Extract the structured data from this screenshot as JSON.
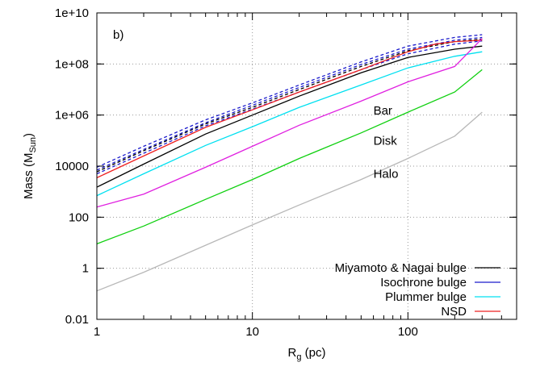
{
  "chart_data": {
    "type": "line",
    "panel_label": "b)",
    "xlabel": "R",
    "xlabel_sub": "g",
    "xlabel_unit": " (pc)",
    "ylabel": "Mass (M",
    "ylabel_sub": "Sun",
    "ylabel_end": ")",
    "xscale": "log",
    "yscale": "log",
    "xlim": [
      1,
      500
    ],
    "ylim": [
      0.01,
      10000000000
    ],
    "x_ticks": [
      1,
      10,
      100
    ],
    "x_tick_labels": [
      "1",
      "10",
      "100"
    ],
    "y_ticks": [
      0.01,
      1,
      100,
      10000,
      1000000,
      100000000,
      10000000000
    ],
    "y_tick_labels": [
      "0.01",
      "1",
      "100",
      "10000",
      "1e+06",
      "1e+08",
      "1e+10"
    ],
    "grid": true,
    "legend_position": "bottom-right",
    "legend": [
      {
        "label": "Miyamoto & Nagai bulge",
        "color": "#000000",
        "dash": "solid"
      },
      {
        "label": "Isochrone bulge",
        "color": "#1a1acc",
        "dash": "solid"
      },
      {
        "label": "Plummer bulge",
        "color": "#00e0f0",
        "dash": "solid"
      },
      {
        "label": "NSD",
        "color": "#ee2020",
        "dash": "solid"
      }
    ],
    "annotations": [
      {
        "text": "Bar",
        "x": 60,
        "y": 1500000
      },
      {
        "text": "Disk",
        "x": 60,
        "y": 100000
      },
      {
        "text": "Halo",
        "x": 60,
        "y": 5000
      }
    ],
    "series": [
      {
        "color": "#1a1acc",
        "dash": "4,3",
        "x": [
          1,
          2,
          5,
          10,
          20,
          50,
          100,
          200,
          300
        ],
        "y": [
          9000,
          60000,
          650000,
          3000000,
          15000000,
          120000000,
          500000000,
          1100000000,
          1400000000
        ]
      },
      {
        "color": "#1a1acc",
        "dash": "4,3",
        "x": [
          1,
          2,
          5,
          10,
          20,
          50,
          100,
          200,
          300
        ],
        "y": [
          7000,
          45000,
          500000,
          2400000,
          12000000,
          95000000,
          380000000,
          850000000,
          1100000000
        ]
      },
      {
        "color": "#1a1acc",
        "dash": "4,3",
        "x": [
          1,
          2,
          5,
          10,
          20,
          50,
          100,
          200,
          300
        ],
        "y": [
          5000,
          32000,
          380000,
          1700000,
          8000000,
          60000000,
          250000000,
          600000000,
          800000000
        ]
      },
      {
        "color": "#000000",
        "dash": "4,3",
        "x": [
          1,
          2,
          5,
          10,
          20,
          50,
          100,
          200,
          300
        ],
        "y": [
          6000,
          40000,
          450000,
          2000000,
          10000000,
          80000000,
          330000000,
          750000000,
          950000000
        ]
      },
      {
        "color": "#000000",
        "dash": "none",
        "x": [
          1,
          2,
          5,
          10,
          20,
          50,
          100,
          200,
          300
        ],
        "y": [
          1500,
          12000,
          180000,
          1000000,
          5500000,
          45000000,
          180000000,
          380000000,
          500000000
        ]
      },
      {
        "color": "#ee2020",
        "dash": "none",
        "x": [
          1,
          2,
          5,
          10,
          20,
          50,
          100,
          150,
          200,
          300
        ],
        "y": [
          3500,
          25000,
          330000,
          1600000,
          8000000,
          60000000,
          300000000,
          600000000,
          750000000,
          850000000
        ]
      },
      {
        "color": "#00e0f0",
        "dash": "none",
        "x": [
          1,
          2,
          5,
          10,
          20,
          50,
          100,
          200,
          300
        ],
        "y": [
          700,
          5000,
          65000,
          350000,
          2000000,
          15000000,
          70000000,
          200000000,
          300000000
        ]
      },
      {
        "color": "#e020e0",
        "dash": "none",
        "x": [
          1,
          2,
          4,
          5,
          10,
          20,
          50,
          100,
          200,
          300
        ],
        "y": [
          250,
          800,
          5000,
          9000,
          60000,
          400000,
          3500000,
          20000000,
          80000000,
          1000000000
        ]
      },
      {
        "color": "#10d010",
        "dash": "none",
        "x": [
          1,
          2,
          5,
          10,
          20,
          50,
          100,
          200,
          300
        ],
        "y": [
          9,
          45,
          500,
          3000,
          20000,
          200000,
          1300000,
          8000000,
          60000000
        ]
      },
      {
        "color": "#b8b8b8",
        "dash": "none",
        "x": [
          1,
          2,
          5,
          10,
          20,
          50,
          100,
          200,
          300
        ],
        "y": [
          0.13,
          0.7,
          8,
          50,
          300,
          3000,
          20000,
          150000,
          1300000
        ]
      }
    ]
  }
}
